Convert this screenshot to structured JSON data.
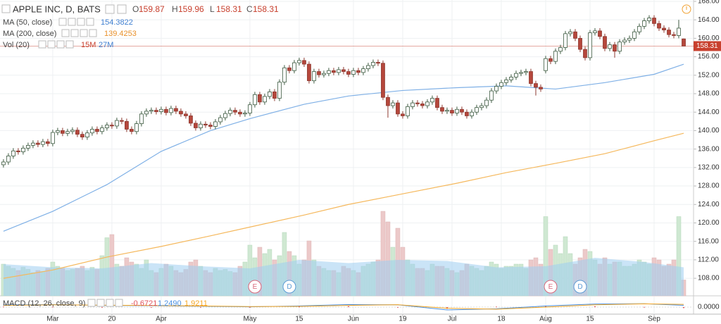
{
  "chart_data": {
    "type": "candlestick",
    "title": "APPLE INC, D, BATS",
    "ohlc_letters": [
      "O",
      "H",
      "L",
      "C"
    ],
    "up_color": "#ffffff",
    "up_stroke": "#3d5a40",
    "down_color": "#b5473c",
    "down_stroke": "#8e3a31",
    "last_color": "#c8402e",
    "xlim": [
      -0.7,
      140
    ],
    "ylim": [
      104.2,
      168.3
    ],
    "yticks": [
      {
        "value": 108,
        "label": "108.00"
      },
      {
        "value": 112,
        "label": "112.00"
      },
      {
        "value": 116,
        "label": "116.00"
      },
      {
        "value": 120,
        "label": "120.00"
      },
      {
        "value": 124,
        "label": "124.00"
      },
      {
        "value": 128,
        "label": "128.00"
      },
      {
        "value": 132,
        "label": "132.00"
      },
      {
        "value": 136,
        "label": "136.00"
      },
      {
        "value": 140,
        "label": "140.00"
      },
      {
        "value": 144,
        "label": "144.00"
      },
      {
        "value": 148,
        "label": "148.00"
      },
      {
        "value": 152,
        "label": "152.00"
      },
      {
        "value": 156,
        "label": "156.00"
      },
      {
        "value": 160,
        "label": "160.00"
      },
      {
        "value": 164,
        "label": "164.00"
      },
      {
        "value": 168,
        "label": "168.00"
      }
    ],
    "xticks": [
      {
        "value": 10,
        "label": "Mar"
      },
      {
        "value": 22,
        "label": "20"
      },
      {
        "value": 32,
        "label": "Apr"
      },
      {
        "value": 50,
        "label": "May"
      },
      {
        "value": 60,
        "label": "15"
      },
      {
        "value": 71,
        "label": "Jun"
      },
      {
        "value": 81,
        "label": "19"
      },
      {
        "value": 91,
        "label": "Jul"
      },
      {
        "value": 101,
        "label": "18"
      },
      {
        "value": 110,
        "label": "Aug"
      },
      {
        "value": 119,
        "label": "15"
      },
      {
        "value": 132,
        "label": "Sep"
      }
    ],
    "grid": true,
    "open": [
      132.6,
      133.2,
      134.5,
      135.6,
      135.4,
      136.2,
      136.8,
      137.3,
      137.0,
      137.6,
      137.2,
      139.6,
      140.0,
      139.4,
      139.8,
      140.1,
      139.2,
      138.6,
      139.5,
      140.3,
      139.8,
      140.6,
      141.2,
      141.0,
      142.2,
      142.0,
      140.3,
      139.8,
      141.5,
      143.6,
      144.2,
      144.4,
      144.1,
      144.6,
      143.9,
      144.8,
      144.2,
      143.6,
      143.2,
      141.6,
      140.6,
      141.4,
      141.2,
      140.9,
      141.9,
      142.8,
      143.7,
      144.4,
      144.0,
      143.6,
      143.8,
      145.6,
      147.8,
      146.2,
      147.4,
      148.4,
      147.0,
      150.5,
      153.6,
      153.0,
      154.7,
      155.2,
      154.4,
      150.8,
      152.8,
      152.1,
      152.4,
      153.0,
      152.6,
      153.2,
      152.8,
      152.2,
      153.0,
      152.6,
      153.4,
      154.1,
      154.8,
      154.6,
      147.2,
      145.4,
      146.0,
      143.6,
      143.2,
      145.2,
      146.0,
      145.8,
      145.4,
      146.2,
      147.0,
      145.0,
      144.2,
      144.4,
      143.8,
      144.6,
      144.0,
      143.2,
      144.0,
      145.0,
      145.4,
      146.6,
      148.6,
      149.6,
      150.4,
      151.0,
      151.6,
      152.4,
      152.6,
      152.8,
      150.2,
      149.4,
      153.0,
      155.6,
      155.0,
      157.2,
      158.0,
      161.0,
      161.4,
      160.0,
      157.6,
      155.8,
      161.2,
      161.6,
      160.4,
      157.8,
      158.6,
      157.2,
      159.2,
      159.6,
      160.0,
      161.4,
      162.6,
      163.8,
      164.4,
      163.2,
      162.2,
      161.8,
      160.8,
      160.6,
      159.87
    ],
    "high": [
      133.8,
      135.1,
      136.2,
      136.2,
      136.8,
      137.4,
      137.9,
      137.9,
      138.2,
      138.2,
      140.2,
      140.6,
      140.6,
      140.4,
      140.7,
      140.7,
      139.8,
      140.1,
      140.9,
      140.9,
      141.2,
      141.8,
      141.8,
      142.8,
      142.8,
      142.6,
      140.9,
      142.1,
      144.2,
      144.8,
      145.0,
      145.0,
      145.2,
      145.2,
      145.4,
      145.4,
      144.8,
      144.2,
      143.8,
      142.2,
      142.0,
      142.0,
      141.8,
      142.5,
      143.4,
      144.3,
      145.0,
      145.0,
      144.6,
      144.4,
      146.2,
      148.4,
      148.4,
      148.0,
      149.0,
      149.0,
      151.1,
      154.2,
      154.2,
      155.3,
      155.8,
      155.8,
      155.0,
      153.4,
      153.4,
      153.0,
      153.6,
      153.6,
      153.8,
      153.8,
      153.4,
      153.6,
      153.6,
      154.0,
      154.7,
      155.4,
      155.4,
      155.2,
      147.8,
      146.6,
      146.6,
      144.2,
      145.8,
      146.6,
      146.6,
      146.4,
      146.8,
      147.6,
      147.6,
      145.6,
      145.0,
      145.0,
      145.2,
      145.2,
      144.6,
      144.6,
      145.6,
      146.0,
      147.2,
      149.2,
      150.2,
      151.0,
      151.6,
      152.2,
      153.0,
      153.2,
      153.4,
      153.4,
      150.8,
      150.0,
      156.2,
      156.2,
      157.8,
      158.6,
      161.6,
      162.0,
      162.0,
      160.6,
      158.2,
      161.8,
      162.2,
      162.2,
      161.0,
      159.2,
      159.2,
      159.8,
      160.2,
      160.6,
      162.0,
      163.2,
      164.4,
      165.0,
      165.0,
      163.8,
      162.8,
      162.4,
      161.4,
      164.0,
      159.96
    ],
    "low": [
      132.0,
      132.6,
      133.9,
      134.8,
      134.8,
      135.6,
      136.2,
      136.4,
      136.4,
      136.6,
      136.6,
      139.0,
      138.8,
      138.8,
      139.2,
      138.6,
      138.0,
      138.0,
      138.9,
      139.2,
      139.2,
      140.0,
      140.4,
      140.4,
      141.4,
      139.7,
      139.2,
      139.2,
      140.9,
      143.0,
      143.6,
      143.5,
      143.5,
      143.3,
      143.3,
      143.6,
      143.0,
      142.6,
      141.0,
      140.0,
      140.0,
      140.6,
      140.3,
      140.3,
      141.3,
      142.2,
      143.1,
      143.4,
      143.0,
      143.0,
      143.2,
      145.0,
      145.6,
      145.6,
      146.8,
      146.4,
      146.4,
      149.9,
      152.4,
      152.4,
      154.1,
      153.8,
      150.2,
      150.2,
      151.5,
      151.5,
      151.8,
      152.0,
      152.0,
      152.2,
      151.6,
      151.6,
      152.0,
      152.0,
      152.8,
      153.5,
      154.0,
      146.6,
      142.8,
      144.8,
      143.0,
      142.6,
      142.6,
      144.6,
      145.2,
      144.8,
      144.8,
      145.6,
      144.4,
      143.6,
      143.6,
      143.2,
      143.2,
      143.4,
      142.6,
      142.6,
      143.4,
      144.4,
      144.8,
      146.0,
      148.0,
      149.0,
      149.8,
      150.4,
      151.0,
      151.8,
      152.0,
      149.6,
      147.6,
      148.4,
      152.4,
      154.4,
      154.4,
      156.6,
      157.4,
      160.4,
      159.4,
      157.0,
      155.2,
      155.2,
      160.6,
      159.8,
      157.2,
      157.2,
      155.8,
      156.6,
      158.6,
      159.0,
      159.4,
      160.8,
      162.0,
      163.2,
      162.6,
      161.6,
      161.2,
      160.2,
      160.0,
      160.0,
      158.31
    ],
    "close": [
      133.2,
      134.5,
      135.6,
      135.4,
      136.2,
      136.8,
      137.3,
      137.0,
      137.6,
      137.2,
      139.6,
      140.0,
      139.4,
      139.8,
      140.1,
      139.2,
      138.6,
      139.5,
      140.3,
      139.8,
      140.6,
      141.2,
      141.0,
      142.2,
      142.0,
      140.3,
      139.8,
      141.5,
      143.6,
      144.2,
      144.4,
      144.1,
      144.6,
      143.9,
      144.8,
      144.2,
      143.6,
      143.2,
      141.6,
      140.6,
      141.4,
      141.2,
      140.9,
      141.9,
      142.8,
      143.7,
      144.4,
      144.0,
      143.6,
      143.8,
      145.6,
      147.8,
      146.2,
      147.4,
      148.4,
      147.0,
      150.5,
      153.6,
      153.0,
      154.7,
      155.2,
      154.4,
      150.8,
      152.8,
      152.1,
      152.4,
      153.0,
      152.6,
      153.2,
      152.8,
      152.2,
      153.0,
      152.6,
      153.4,
      154.1,
      154.8,
      154.6,
      147.2,
      145.4,
      146.0,
      143.6,
      143.2,
      145.2,
      146.0,
      145.8,
      145.4,
      146.2,
      147.0,
      145.0,
      144.2,
      144.4,
      143.8,
      144.6,
      144.0,
      143.2,
      144.0,
      145.0,
      145.4,
      146.6,
      148.6,
      149.6,
      150.4,
      151.0,
      151.6,
      152.4,
      152.6,
      152.8,
      150.2,
      149.4,
      149.0,
      155.6,
      155.0,
      157.2,
      158.0,
      161.0,
      161.4,
      160.0,
      157.6,
      155.8,
      161.2,
      161.6,
      160.4,
      157.8,
      158.6,
      157.2,
      159.2,
      159.6,
      160.0,
      161.4,
      162.6,
      163.8,
      164.4,
      163.2,
      162.2,
      161.8,
      160.8,
      160.6,
      162.2,
      158.31
    ],
    "indicators": [
      {
        "name": "MA (50, close)",
        "color": "#7fb0e6",
        "label_color": "#3f7fd0",
        "x": [
          0,
          10,
          21,
          32,
          42,
          50,
          61,
          70,
          81,
          92,
          102,
          112,
          122,
          132,
          138
        ],
        "values": [
          118.2,
          122.5,
          128.3,
          135.5,
          140.0,
          142.6,
          145.7,
          147.5,
          148.7,
          149.3,
          149.7,
          149.0,
          150.4,
          152.2,
          154.3822
        ]
      },
      {
        "name": "MA (200, close)",
        "color": "#f5b85c",
        "label_color": "#e8902a",
        "x": [
          0,
          10,
          21,
          32,
          42,
          50,
          61,
          70,
          81,
          92,
          102,
          112,
          122,
          132,
          138
        ],
        "values": [
          108.0,
          109.8,
          112.6,
          114.9,
          117.2,
          119.1,
          121.7,
          124.0,
          126.3,
          128.6,
          130.9,
          132.9,
          135.0,
          137.8,
          139.4253
        ]
      }
    ],
    "volume": {
      "name": "Vol (20)",
      "vlim": [
        0,
        70
      ],
      "up_color": "#cfe8d2",
      "down_color": "#ecc9c9",
      "values": [
        30,
        28,
        26,
        24,
        27,
        25,
        22,
        24,
        23,
        26,
        32,
        28,
        26,
        24,
        25,
        26,
        28,
        24,
        27,
        25,
        38,
        55,
        58,
        30,
        28,
        36,
        32,
        30,
        26,
        34,
        24,
        22,
        26,
        30,
        28,
        24,
        22,
        25,
        32,
        34,
        28,
        24,
        22,
        26,
        24,
        25,
        23,
        22,
        28,
        32,
        48,
        36,
        46,
        40,
        44,
        34,
        38,
        60,
        42,
        38,
        30,
        34,
        52,
        34,
        28,
        26,
        24,
        24,
        22,
        28,
        26,
        24,
        22,
        28,
        30,
        32,
        34,
        80,
        70,
        46,
        64,
        46,
        34,
        30,
        26,
        26,
        24,
        30,
        28,
        28,
        26,
        24,
        22,
        24,
        30,
        28,
        26,
        24,
        28,
        32,
        30,
        26,
        28,
        28,
        30,
        30,
        26,
        34,
        36,
        30,
        75,
        44,
        48,
        40,
        56,
        40,
        30,
        36,
        44,
        42,
        34,
        30,
        36,
        30,
        32,
        32,
        28,
        28,
        30,
        34,
        32,
        30,
        36,
        34,
        28,
        30,
        34,
        75,
        15
      ],
      "last_label": "15M",
      "last_color": "#c8402e",
      "ma": {
        "color": "#9fcdf0",
        "label_color": "#3f7fd0",
        "x": [
          0,
          10,
          20,
          30,
          40,
          50,
          60,
          70,
          80,
          90,
          100,
          110,
          120,
          130,
          138
        ],
        "values": [
          30,
          27,
          26,
          31,
          28,
          26,
          34,
          31,
          34,
          33,
          27,
          28,
          36,
          32,
          27
        ],
        "last_label": "27M"
      }
    },
    "events": [
      {
        "label": "E",
        "x": 51,
        "color": "#d9667a"
      },
      {
        "label": "D",
        "x": 58,
        "color": "#5b9bd5"
      },
      {
        "label": "E",
        "x": 111,
        "color": "#d9667a"
      },
      {
        "label": "D",
        "x": 117,
        "color": "#5b9bd5"
      }
    ],
    "macd": {
      "name": "MACD (12, 26, close, 9)",
      "ylim": [
        -5,
        5
      ],
      "yticks": [
        {
          "value": 0,
          "label": "0.0000"
        }
      ],
      "x": [
        0,
        10,
        20,
        30,
        40,
        50,
        60,
        70,
        80,
        90,
        100,
        110,
        120,
        130,
        138
      ],
      "histogram": [
        0.3,
        0.2,
        -0.2,
        -0.1,
        -0.2,
        -0.2,
        0.3,
        0.6,
        -0.1,
        -1.2,
        0.3,
        0.8,
        0.6,
        0.1,
        -0.6721
      ],
      "macd": [
        1.5,
        1.8,
        1.2,
        1.0,
        0.6,
        0.2,
        0.8,
        1.8,
        1.6,
        -2.0,
        -1.2,
        0.8,
        2.2,
        2.4,
        1.249
      ],
      "signal": [
        1.2,
        1.6,
        1.4,
        1.1,
        0.8,
        0.4,
        0.5,
        1.2,
        1.7,
        -0.8,
        -1.5,
        0.0,
        1.6,
        2.3,
        1.9211
      ],
      "colors": [
        "#e0505a",
        "#4a90e2",
        "#f5a623"
      ],
      "value_labels": [
        "-0.6721",
        "1.2490",
        "1.9211"
      ]
    }
  }
}
